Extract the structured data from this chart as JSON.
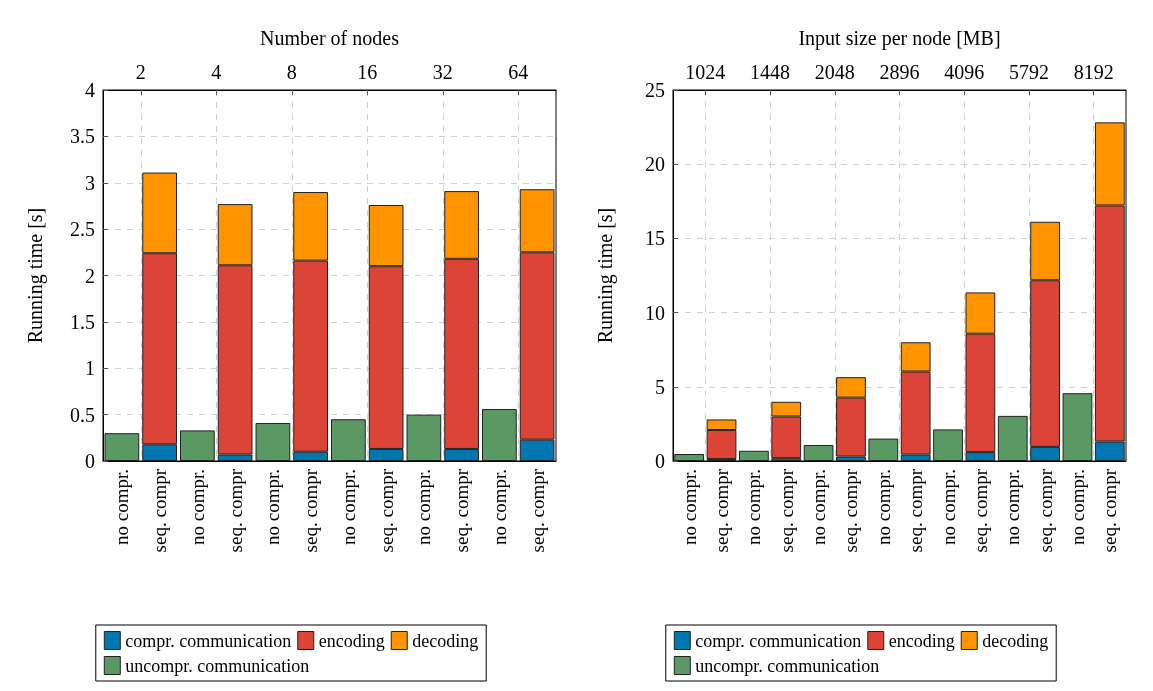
{
  "chart_data": [
    {
      "type": "bar",
      "stacked": true,
      "x2label": "Number of nodes",
      "ylabel": "Running time [s]",
      "categories": [
        "no compr.",
        "seq. compr",
        "no compr.",
        "seq. compr",
        "no compr.",
        "seq. compr",
        "no compr.",
        "seq. compr",
        "no compr.",
        "seq. compr",
        "no compr.",
        "seq. compr"
      ],
      "log": "x2",
      "x2lim": [
        1.414,
        90.51
      ],
      "x2ticks": [
        2,
        4,
        8,
        16,
        32,
        64
      ],
      "ylim": [
        0,
        4
      ],
      "yticks": [
        0,
        0.5,
        1,
        1.5,
        2,
        2.5,
        3,
        3.5,
        4
      ],
      "grid": true,
      "legend": "bottom",
      "series": [
        {
          "name": "compr. communication",
          "color": "#0077b0",
          "values": [
            null,
            0.18,
            null,
            0.07,
            null,
            0.1,
            null,
            0.13,
            null,
            0.13,
            null,
            0.23
          ]
        },
        {
          "name": "encoding",
          "color": "#db4437",
          "values": [
            null,
            2.06,
            null,
            2.04,
            null,
            2.06,
            null,
            1.97,
            null,
            2.05,
            null,
            2.02
          ]
        },
        {
          "name": "decoding",
          "color": "#ff9400",
          "values": [
            null,
            0.87,
            null,
            0.66,
            null,
            0.74,
            null,
            0.66,
            null,
            0.73,
            null,
            0.68
          ]
        },
        {
          "name": "uncompr. communication",
          "color": "#5a9964",
          "values": [
            0.3,
            null,
            0.33,
            null,
            0.41,
            null,
            0.45,
            null,
            0.5,
            null,
            0.56,
            null
          ]
        }
      ]
    },
    {
      "type": "bar",
      "stacked": true,
      "x2label": "Input size per node [MB]",
      "ylabel": "Running time [s]",
      "categories": [
        "no compr.",
        "seq. compr",
        "no compr.",
        "seq. compr",
        "no compr.",
        "seq. compr",
        "no compr.",
        "seq. compr",
        "no compr.",
        "seq. compr",
        "no compr.",
        "seq. compr",
        "no compr.",
        "seq. compr"
      ],
      "log": "x2",
      "x2lim": [
        861.1,
        9742.3
      ],
      "x2ticks": [
        1024,
        1448,
        2048,
        2896,
        4096,
        5792,
        8192
      ],
      "ylim": [
        0,
        25
      ],
      "yticks": [
        0,
        5,
        10,
        15,
        20,
        25
      ],
      "grid": true,
      "legend": "bottom",
      "series": [
        {
          "name": "compr. communication",
          "color": "#0077b0",
          "values": [
            null,
            0.13,
            null,
            0.19,
            null,
            0.3,
            null,
            0.43,
            null,
            0.6,
            null,
            0.95,
            null,
            1.31
          ]
        },
        {
          "name": "encoding",
          "color": "#db4437",
          "values": [
            null,
            1.96,
            null,
            2.81,
            null,
            3.97,
            null,
            5.6,
            null,
            7.98,
            null,
            11.23,
            null,
            15.91
          ]
        },
        {
          "name": "decoding",
          "color": "#ff9400",
          "values": [
            null,
            0.71,
            null,
            0.99,
            null,
            1.38,
            null,
            1.97,
            null,
            2.78,
            null,
            3.94,
            null,
            5.6
          ]
        },
        {
          "name": "uncompr. communication",
          "color": "#5a9964",
          "values": [
            0.47,
            null,
            0.69,
            null,
            1.08,
            null,
            1.51,
            null,
            2.13,
            null,
            3.04,
            null,
            4.57,
            null
          ]
        }
      ]
    }
  ]
}
